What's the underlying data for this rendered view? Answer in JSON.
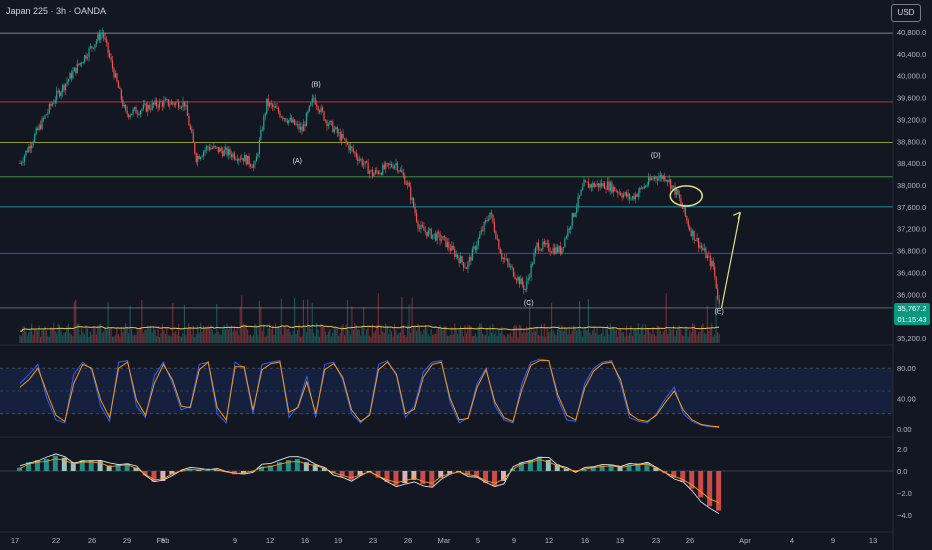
{
  "header": {
    "title": "Japan 225 · 3h · OANDA",
    "currency": "USD"
  },
  "price_axis": [
    "40,800.0",
    "40,400.0",
    "40,000.0",
    "39,600.0",
    "39,200.0",
    "38,800.0",
    "38,400.0",
    "38,000.0",
    "37,600.0",
    "37,200.0",
    "36,800.0",
    "36,400.0",
    "36,000.0",
    "35,200.0"
  ],
  "current_price": "35,767.2",
  "countdown": "01:15:43",
  "wave_labels": [
    "(A)",
    "(B)",
    "(C)",
    "(D)",
    "(E)"
  ],
  "stoch_axis": [
    "80.00",
    "40.00",
    "0.00"
  ],
  "macd_axis": [
    "2.0",
    "0.0",
    "−2.0",
    "−4.0"
  ],
  "time_axis": [
    "17",
    "22",
    "26",
    "29",
    "Feb",
    "5",
    "9",
    "12",
    "16",
    "19",
    "23",
    "26",
    "Mar",
    "5",
    "9",
    "12",
    "16",
    "19",
    "23",
    "26",
    "Apr",
    "4",
    "9",
    "13"
  ],
  "colors": {
    "up": "#26a69a",
    "down": "#ef5350",
    "bg": "#131722",
    "fib_red": "#f23645",
    "fib_yellow": "#cddc39",
    "fib_green": "#4caf50",
    "fib_blue": "#2962ff"
  },
  "chart_data": [
    {
      "type": "candlestick",
      "title": "Japan 225 · 3h · OANDA",
      "ylim": [
        35000,
        41000
      ],
      "path": [
        [
          17,
          38400
        ],
        [
          20,
          39600
        ],
        [
          24,
          40800
        ],
        [
          26,
          39300
        ],
        [
          29,
          39500
        ],
        [
          31,
          39500
        ],
        [
          32,
          38500
        ],
        [
          33,
          38700
        ],
        [
          34.5,
          38600
        ],
        [
          36,
          38500
        ],
        [
          37,
          38350
        ],
        [
          38,
          39500
        ],
        [
          41,
          39000
        ],
        [
          42,
          39600
        ],
        [
          43,
          39200
        ],
        [
          45,
          38700
        ],
        [
          47,
          38200
        ],
        [
          49,
          38400
        ],
        [
          50,
          38000
        ],
        [
          51,
          37200
        ],
        [
          53,
          37000
        ],
        [
          55,
          36500
        ],
        [
          57,
          37500
        ],
        [
          58,
          36700
        ],
        [
          60,
          36100
        ],
        [
          61,
          36900
        ],
        [
          63,
          36800
        ],
        [
          65,
          38000
        ],
        [
          67,
          38000
        ],
        [
          69,
          37750
        ],
        [
          71,
          38150
        ],
        [
          72,
          38150
        ],
        [
          73,
          37800
        ],
        [
          74,
          37200
        ],
        [
          76,
          36500
        ],
        [
          76.5,
          35800
        ]
      ],
      "horizontal_levels": [
        40780,
        39520,
        38780,
        38150,
        37600,
        36750,
        35750
      ],
      "wave_points": [
        {
          "label": "(A)",
          "day": 40.6,
          "price": 38400
        },
        {
          "label": "(B)",
          "day": 42.2,
          "price": 39800
        },
        {
          "label": "(C)",
          "day": 60.3,
          "price": 35800
        },
        {
          "label": "(D)",
          "day": 71.1,
          "price": 38500
        },
        {
          "label": "(E)",
          "day": 76.5,
          "price": 35650
        }
      ],
      "projection": {
        "from": [
          76.7,
          35750
        ],
        "to": [
          78.3,
          37500
        ]
      }
    },
    {
      "type": "line",
      "title": "",
      "ylim": [
        0,
        100
      ],
      "bands": [
        20,
        50,
        80
      ],
      "series": [
        {
          "color": "#2962ff",
          "values": [
            60,
            72,
            85,
            40,
            12,
            8,
            72,
            88,
            78,
            30,
            10,
            88,
            90,
            30,
            15,
            70,
            88,
            60,
            25,
            30,
            85,
            88,
            20,
            8,
            88,
            80,
            20,
            85,
            88,
            90,
            15,
            30,
            70,
            15,
            85,
            88,
            65,
            20,
            8,
            20,
            85,
            90,
            70,
            15,
            30,
            75,
            88,
            90,
            35,
            8,
            15,
            60,
            80,
            30,
            12,
            8,
            60,
            88,
            92,
            90,
            40,
            12,
            10,
            60,
            80,
            88,
            90,
            60,
            15,
            10,
            8,
            20,
            40,
            55,
            20,
            10,
            5,
            3,
            2
          ]
        },
        {
          "color": "#ff9800",
          "values": [
            55,
            65,
            80,
            48,
            18,
            10,
            60,
            85,
            80,
            38,
            15,
            80,
            88,
            38,
            18,
            60,
            85,
            65,
            30,
            28,
            78,
            88,
            28,
            12,
            82,
            82,
            25,
            78,
            86,
            88,
            22,
            28,
            62,
            20,
            78,
            86,
            68,
            25,
            10,
            18,
            78,
            88,
            72,
            20,
            26,
            68,
            85,
            88,
            40,
            12,
            14,
            55,
            78,
            35,
            15,
            10,
            52,
            84,
            90,
            90,
            45,
            18,
            12,
            54,
            76,
            86,
            88,
            65,
            20,
            12,
            10,
            18,
            35,
            50,
            25,
            12,
            6,
            4,
            3
          ]
        }
      ]
    },
    {
      "type": "bar",
      "title": "",
      "ylim": [
        -4.5,
        2.5
      ],
      "values": [
        0.3,
        0.8,
        1.0,
        1.1,
        1.4,
        1.2,
        0.8,
        1.0,
        1.0,
        0.9,
        0.5,
        0.6,
        0.7,
        0.3,
        -0.4,
        -1.0,
        -0.9,
        -0.3,
        0.0,
        0.2,
        0.1,
        0.2,
        0.1,
        -0.1,
        -0.3,
        -0.2,
        0.0,
        0.4,
        0.5,
        0.8,
        1.0,
        1.1,
        0.8,
        0.6,
        0.3,
        -0.2,
        -0.5,
        -0.8,
        -0.4,
        -0.1,
        -0.6,
        -1.0,
        -1.3,
        -1.1,
        -0.8,
        -1.2,
        -1.4,
        -0.6,
        -0.3,
        -0.1,
        -0.4,
        -0.6,
        -1.1,
        -1.4,
        -0.9,
        0.2,
        0.8,
        1.0,
        1.3,
        1.0,
        0.6,
        0.2,
        0.0,
        0.2,
        0.4,
        0.5,
        0.6,
        0.4,
        0.6,
        0.7,
        0.8,
        0.3,
        -0.2,
        -0.6,
        -1.0,
        -1.6,
        -2.4,
        -3.2,
        -3.6
      ]
    }
  ]
}
